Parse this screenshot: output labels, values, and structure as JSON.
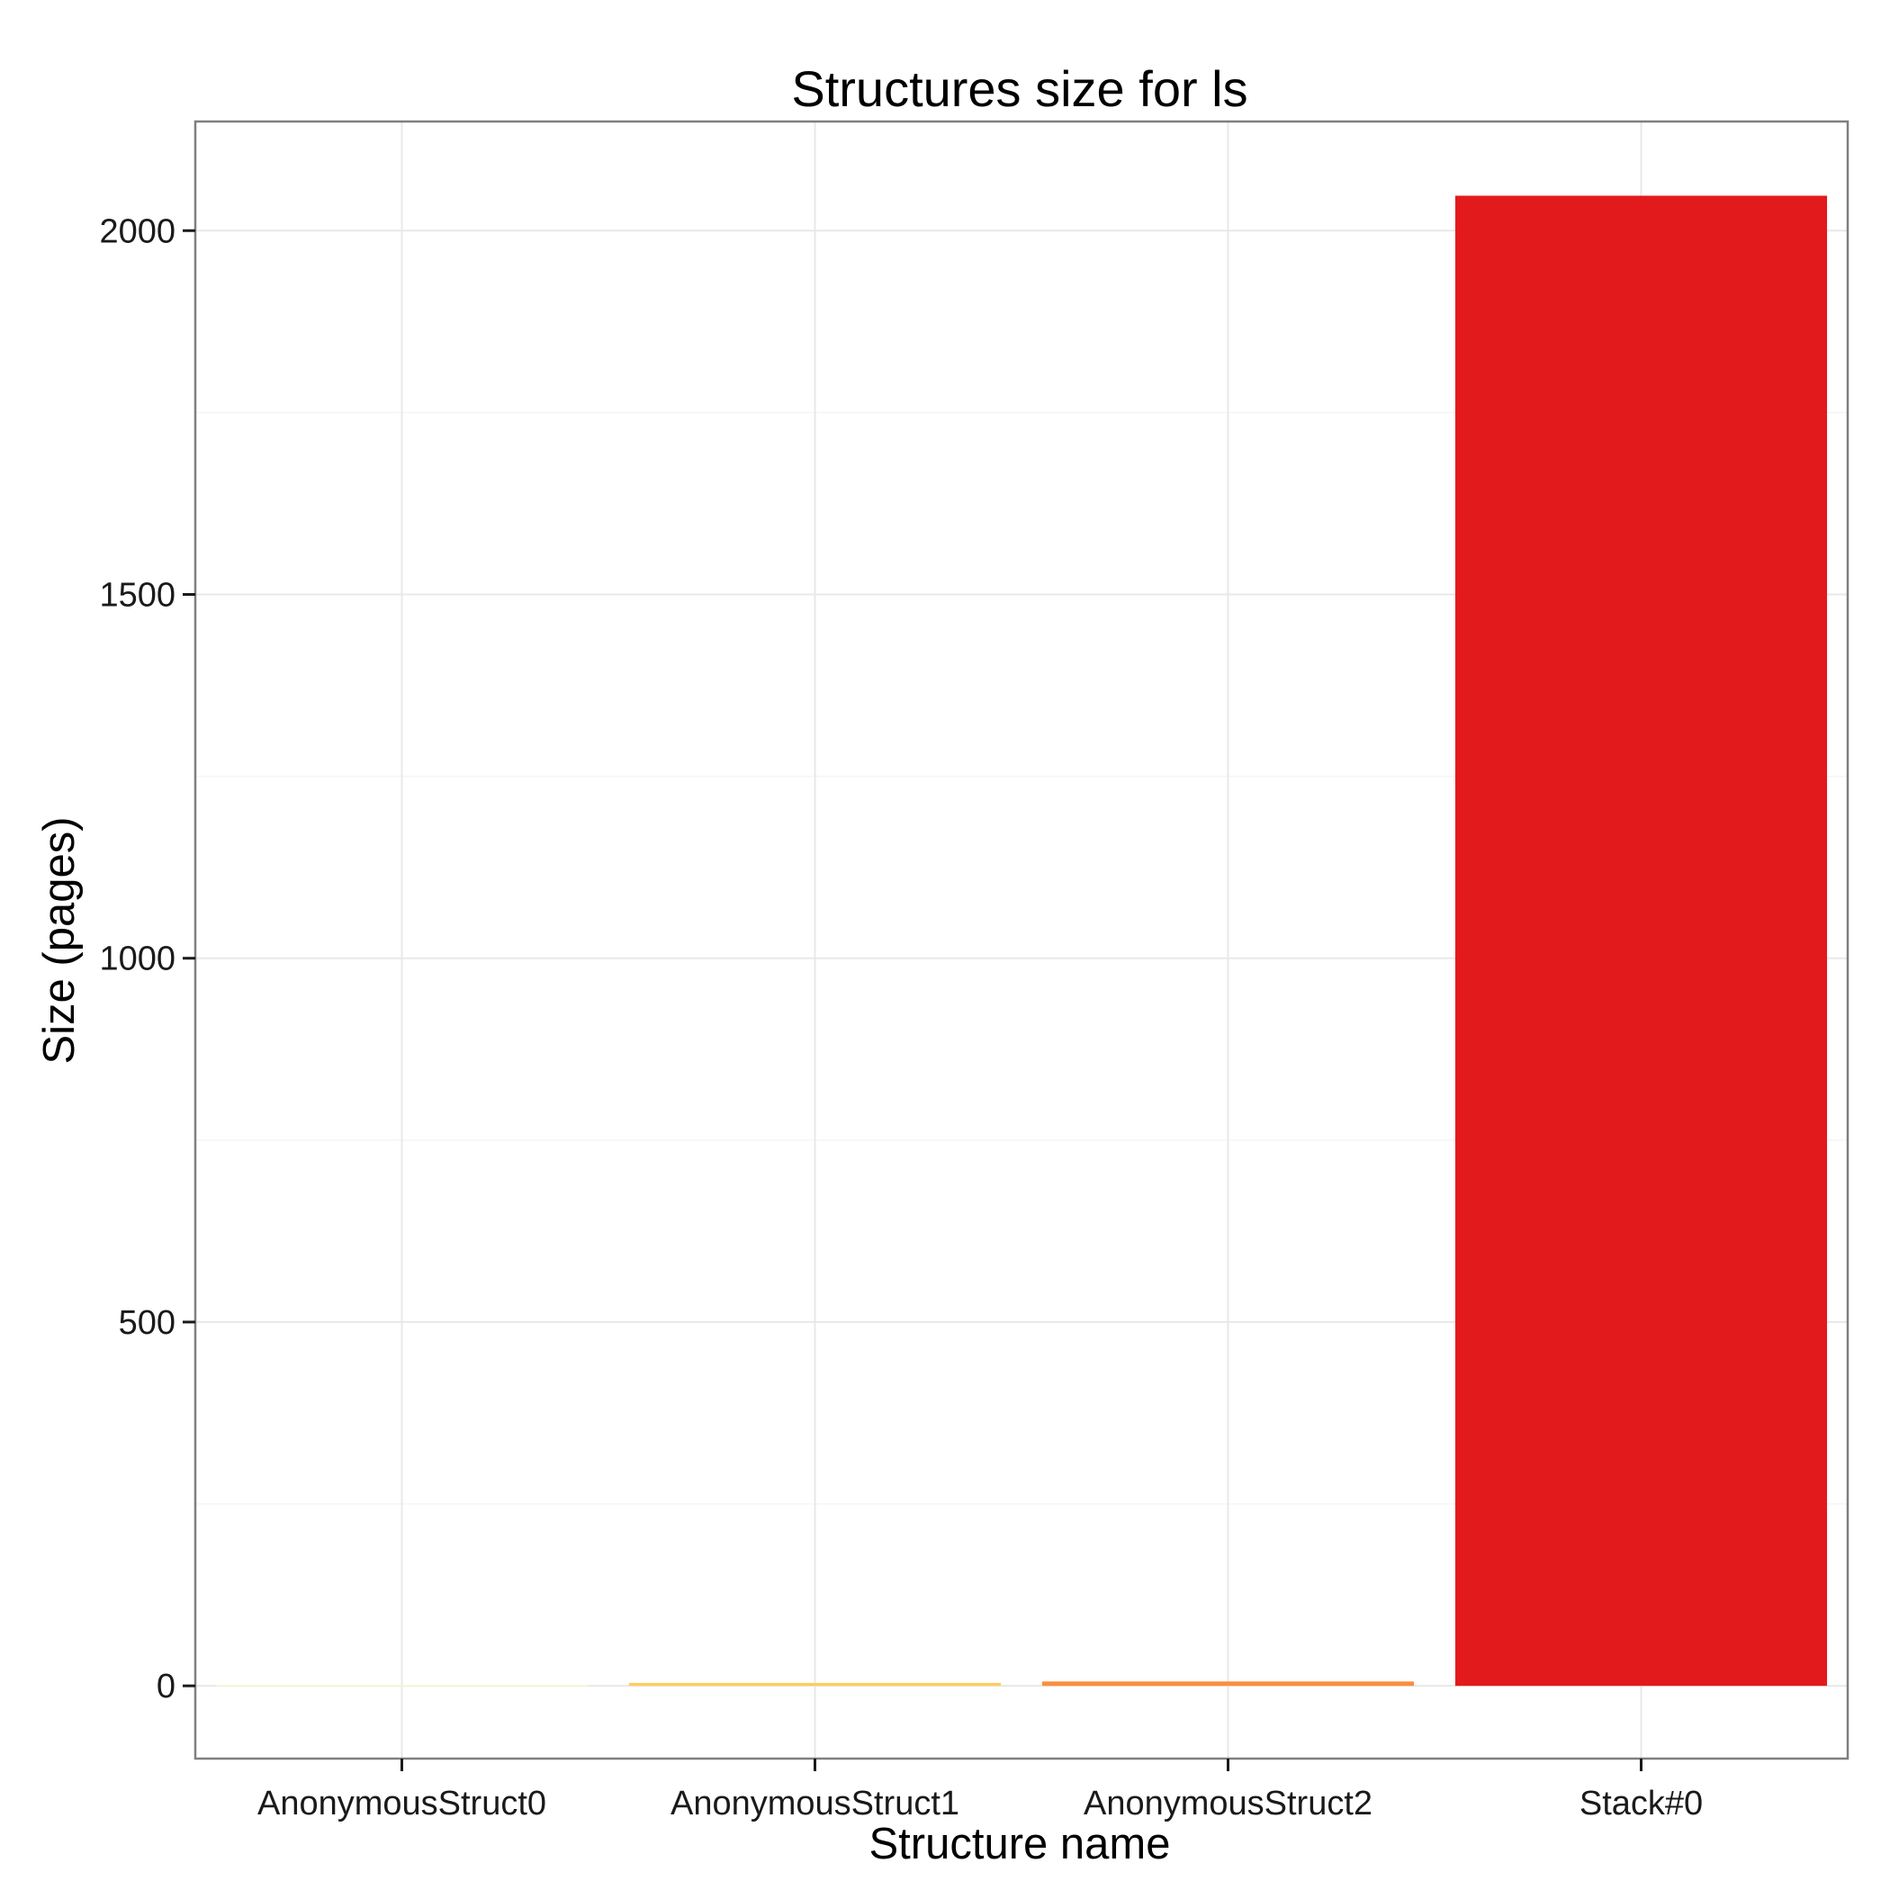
{
  "chart_data": {
    "type": "bar",
    "title": "Structures size for ls",
    "xlabel": "Structure name",
    "ylabel": "Size (pages)",
    "categories": [
      "AnonymousStruct0",
      "AnonymousStruct1",
      "AnonymousStruct2",
      "Stack#0"
    ],
    "values": [
      1,
      4,
      6,
      2048
    ],
    "colors": [
      "#ffffcc",
      "#fecc5c",
      "#fd8d3c",
      "#e31a1c"
    ],
    "ylim": [
      -100,
      2150
    ],
    "yticks": [
      0,
      500,
      1000,
      1500,
      2000
    ],
    "ytick_labels": [
      "0",
      "500",
      "1000",
      "1500",
      "2000"
    ],
    "grid": true,
    "legend": "none"
  }
}
